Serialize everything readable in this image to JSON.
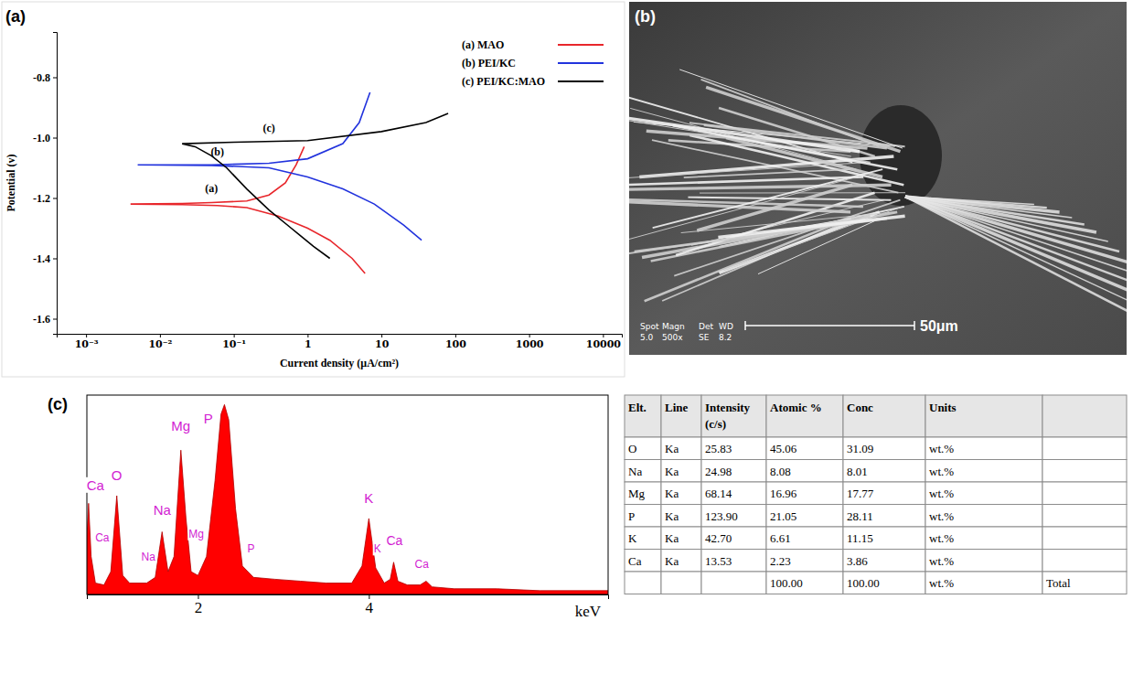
{
  "chart_data": [
    {
      "type": "line",
      "panel": "(a)",
      "x_label": "Current density (μA/cm²)",
      "y_label": "Potential (v)",
      "log": "x",
      "legend": "top-right",
      "xlim": [
        0.0004,
        18000
      ],
      "xticks": [
        {
          "value": 0.001,
          "label": "10⁻³"
        },
        {
          "value": 0.01,
          "label": "10⁻²"
        },
        {
          "value": 0.1,
          "label": "10⁻¹"
        },
        1,
        10,
        100,
        1000,
        10000
      ],
      "ylim": [
        -1.65,
        -0.65
      ],
      "yticks": [
        -1.6,
        -1.4,
        -1.2,
        {
          "value": -1.0,
          "label": "-1.0"
        },
        -0.8
      ],
      "annotations": [
        "(a)",
        "(b)",
        "(c)"
      ],
      "series": [
        {
          "name": "(a) MAO",
          "color": "#e8262b",
          "x": [
            0.9,
            0.7,
            0.5,
            0.3,
            0.15,
            0.05,
            0.02,
            0.004,
            0.02,
            0.06,
            0.15,
            0.4,
            1,
            2,
            4,
            6
          ],
          "values": [
            -1.03,
            -1.09,
            -1.15,
            -1.19,
            -1.21,
            -1.215,
            -1.218,
            -1.22,
            -1.222,
            -1.225,
            -1.232,
            -1.26,
            -1.3,
            -1.34,
            -1.4,
            -1.45
          ]
        },
        {
          "name": "(b) PEI/KC",
          "color": "#2233dd",
          "x": [
            7,
            5,
            3,
            1,
            0.3,
            0.05,
            0.005,
            0.05,
            0.3,
            1,
            3,
            8,
            20,
            35
          ],
          "values": [
            -0.85,
            -0.95,
            -1.02,
            -1.07,
            -1.085,
            -1.09,
            -1.09,
            -1.092,
            -1.1,
            -1.13,
            -1.17,
            -1.22,
            -1.29,
            -1.34
          ]
        },
        {
          "name": "(c) PEI/KC:MAO",
          "color": "#000000",
          "x": [
            80,
            40,
            10,
            1,
            0.1,
            0.02,
            0.03,
            0.05,
            0.08,
            0.15,
            0.3,
            0.6,
            1.2,
            2
          ],
          "values": [
            -0.92,
            -0.95,
            -0.98,
            -1.01,
            -1.015,
            -1.02,
            -1.03,
            -1.06,
            -1.1,
            -1.17,
            -1.24,
            -1.3,
            -1.36,
            -1.4
          ]
        }
      ]
    },
    {
      "type": "area",
      "panel": "(c)",
      "x_label": "keV",
      "color": "#ff0000",
      "tick_labels": "x",
      "xlim": [
        0.7,
        6.8
      ],
      "xticks": [
        2,
        4
      ],
      "ylim": [
        0,
        105
      ],
      "x": [
        0.7,
        0.72,
        0.75,
        0.8,
        0.9,
        0.98,
        1.05,
        1.12,
        1.2,
        1.4,
        1.5,
        1.58,
        1.65,
        1.72,
        1.8,
        1.86,
        1.92,
        2.0,
        2.1,
        2.2,
        2.27,
        2.31,
        2.36,
        2.44,
        2.52,
        2.65,
        2.9,
        3.2,
        3.5,
        3.8,
        3.92,
        4.0,
        4.08,
        4.18,
        4.25,
        4.29,
        4.34,
        4.45,
        4.6,
        4.67,
        4.74,
        5.0,
        5.5,
        6.0,
        6.5,
        6.8
      ],
      "values": [
        30,
        48,
        20,
        6,
        5,
        12,
        52,
        10,
        6,
        6,
        9,
        33,
        12,
        20,
        76,
        40,
        12,
        10,
        20,
        60,
        95,
        100,
        92,
        45,
        15,
        9,
        8,
        7,
        6,
        6,
        15,
        40,
        14,
        6,
        8,
        17,
        7,
        5,
        5,
        7,
        4,
        3,
        3,
        2,
        2,
        2
      ],
      "annotations": [
        "Ca",
        "O",
        "Ca",
        "Na",
        "Mg",
        "Na",
        "Mg",
        "P",
        "P",
        "K",
        "Ca",
        "K",
        "Ca"
      ]
    }
  ],
  "sem_image": {
    "panel": "(b)",
    "info_labels": [
      "Spot",
      "Magn",
      "Det",
      "WD"
    ],
    "info_values": [
      "5.0",
      "500x",
      "SE",
      "8.2"
    ],
    "scale_bar": "50μm"
  },
  "table": {
    "columns": [
      "Elt.",
      "Line",
      "Intensity (c/s)",
      "Atomic %",
      "Conc",
      "Units",
      null
    ],
    "rows": [
      [
        "O",
        "Ka",
        "25.83",
        "45.06",
        "31.09",
        "wt.%",
        null
      ],
      [
        "Na",
        "Ka",
        "24.98",
        "8.08",
        "8.01",
        "wt.%",
        null
      ],
      [
        "Mg",
        "Ka",
        "68.14",
        "16.96",
        "17.77",
        "wt.%",
        null
      ],
      [
        "P",
        "Ka",
        "123.90",
        "21.05",
        "28.11",
        "wt.%",
        null
      ],
      [
        "K",
        "Ka",
        "42.70",
        "6.61",
        "11.15",
        "wt.%",
        null
      ],
      [
        "Ca",
        "Ka",
        "13.53",
        "2.23",
        "3.86",
        "wt.%",
        null
      ],
      [
        null,
        null,
        null,
        "100.00",
        "100.00",
        "wt.%",
        "Total"
      ]
    ]
  }
}
